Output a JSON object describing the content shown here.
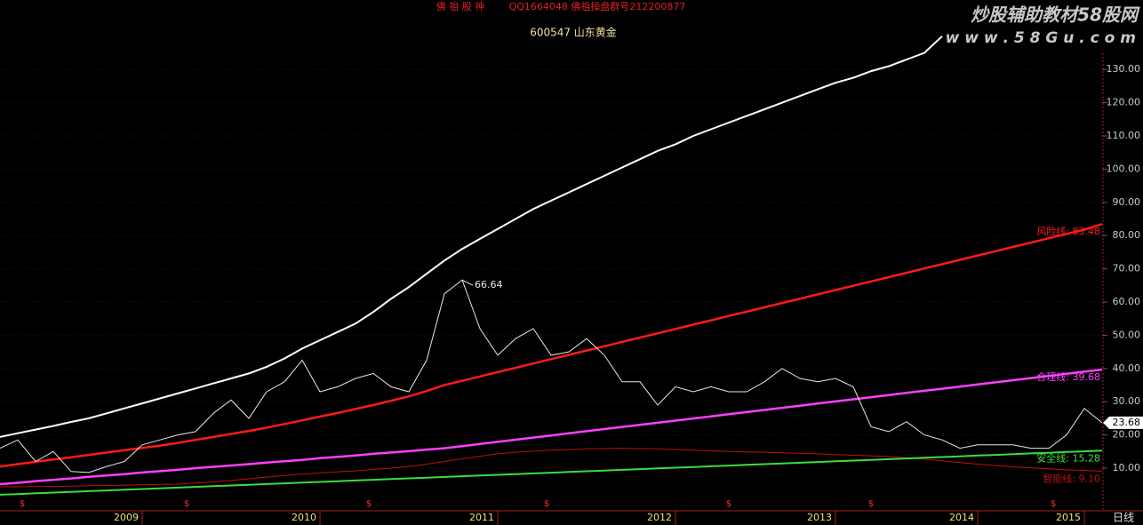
{
  "chart_data": {
    "type": "line",
    "header": "佛 祖 股 神",
    "header_contact": "QQ1664048 佛祖操盘群号212200877",
    "title": "600547 山东黄金",
    "watermark": "炒股辅助教材58股网",
    "watermark_url": "w w w . 5 8 G u . c o m",
    "period": "日线",
    "signal_symbol": "$",
    "categories": [
      null,
      null,
      null,
      null,
      null,
      null,
      null,
      null,
      "2009",
      null,
      null,
      null,
      null,
      null,
      null,
      null,
      null,
      null,
      "2010",
      null,
      null,
      null,
      null,
      null,
      null,
      null,
      null,
      null,
      "2011",
      null,
      null,
      null,
      null,
      null,
      null,
      null,
      null,
      null,
      "2012",
      null,
      null,
      null,
      null,
      null,
      null,
      null,
      null,
      "2013",
      null,
      null,
      null,
      null,
      null,
      null,
      null,
      "2014",
      null,
      null,
      null,
      null,
      null,
      "2015",
      null
    ],
    "ylim": [
      -2,
      150
    ],
    "yticks": [
      {
        "value": 10,
        "label": "10.00"
      },
      {
        "value": 20,
        "label": "20.00"
      },
      {
        "value": 30,
        "label": "30.00"
      },
      {
        "value": 40,
        "label": "40.00"
      },
      {
        "value": 50,
        "label": "50.00"
      },
      {
        "value": 60,
        "label": "60.00"
      },
      {
        "value": 70,
        "label": "70.00"
      },
      {
        "value": 80,
        "label": "80.00"
      },
      {
        "value": 90,
        "label": "90.00"
      },
      {
        "value": 100,
        "label": "100.00"
      },
      {
        "value": 110,
        "label": "110.00"
      },
      {
        "value": 120,
        "label": "120.00"
      },
      {
        "value": 130,
        "label": "130.00"
      }
    ],
    "grid": true,
    "series": [
      {
        "color": "#e8e8e8",
        "line_width": 1,
        "values": [
          16,
          18.5,
          12,
          15,
          9,
          8.7,
          10.5,
          12,
          17,
          18.5,
          20,
          21,
          26.5,
          30.5,
          25,
          33,
          36,
          42.5,
          33,
          34.5,
          37,
          38.5,
          34.5,
          33,
          42.5,
          62.5,
          66.64,
          52,
          44,
          49,
          52,
          44,
          45,
          49,
          44,
          36,
          36,
          29,
          34.5,
          33,
          34.5,
          33,
          33,
          36,
          40,
          37,
          36,
          37,
          34.5,
          22.5,
          21,
          24,
          20,
          18.5,
          16,
          17,
          17,
          17,
          16,
          16,
          20,
          28,
          23.68
        ]
      },
      {
        "color": "#ffffff",
        "line_width": 2,
        "values": [
          19.4,
          20.5,
          21.6,
          22.7,
          23.9,
          25,
          26.5,
          28,
          29.5,
          31,
          32.5,
          34,
          35.5,
          37,
          38.5,
          40.5,
          43,
          46,
          48.5,
          51,
          53.5,
          57,
          61,
          64.5,
          68.5,
          72.5,
          76,
          79,
          82,
          85,
          88,
          90.5,
          93,
          95.5,
          98,
          100.5,
          103,
          105.5,
          107.5,
          110,
          112,
          114,
          116,
          118,
          120,
          122,
          124,
          126,
          127.5,
          129.5,
          131,
          133,
          135,
          140,
          null,
          null,
          null,
          null,
          null,
          null,
          null,
          null,
          null
        ]
      },
      {
        "name": "风险线",
        "end_label": "风险线: 83.48",
        "color": "#ff1a1a",
        "line_width": 2.5,
        "values": [
          10.5,
          11.2,
          11.9,
          12.6,
          13.3,
          14,
          14.7,
          15.4,
          16.1,
          16.8,
          17.6,
          18.5,
          19.4,
          20.3,
          21.2,
          22.2,
          23.3,
          24.4,
          25.5,
          26.6,
          27.8,
          29,
          30.3,
          31.6,
          33.2,
          35,
          36.3,
          37.6,
          38.9,
          40.2,
          41.5,
          42.8,
          44.1,
          45.4,
          46.7,
          48,
          49.3,
          50.6,
          51.9,
          53.2,
          54.5,
          55.8,
          57.1,
          58.4,
          59.7,
          61,
          62.3,
          63.6,
          64.9,
          66.2,
          67.5,
          68.8,
          70.1,
          71.4,
          72.7,
          74,
          75.3,
          76.6,
          77.9,
          79.2,
          80.5,
          81.8,
          83.48
        ]
      },
      {
        "name": "合理线",
        "end_label": "合理线: 39.68",
        "color": "#ff40ff",
        "line_width": 2.5,
        "values": [
          5.2,
          5.6,
          6.1,
          6.5,
          6.9,
          7.4,
          7.8,
          8.2,
          8.7,
          9.1,
          9.5,
          10,
          10.4,
          10.8,
          11.2,
          11.7,
          12.1,
          12.5,
          13,
          13.4,
          13.8,
          14.3,
          14.7,
          15.1,
          15.6,
          16,
          16.64,
          17.28,
          17.92,
          18.56,
          19.2,
          19.84,
          20.48,
          21.12,
          21.76,
          22.4,
          23.04,
          23.68,
          24.32,
          24.96,
          25.6,
          26.24,
          26.88,
          27.52,
          28.16,
          28.8,
          29.44,
          30.08,
          30.72,
          31.36,
          32,
          32.64,
          33.28,
          33.92,
          34.56,
          35.2,
          35.84,
          36.48,
          37.12,
          37.76,
          38.4,
          39.04,
          39.68
        ]
      },
      {
        "name": "安全线",
        "end_label": "安全线: 15.28",
        "color": "#3cdc3c",
        "line_width": 2,
        "values": [
          2,
          2.21,
          2.43,
          2.64,
          2.86,
          3.07,
          3.29,
          3.5,
          3.71,
          3.93,
          4.14,
          4.36,
          4.57,
          4.79,
          5,
          5.21,
          5.43,
          5.64,
          5.86,
          6.07,
          6.29,
          6.5,
          6.71,
          6.93,
          7.14,
          7.36,
          7.57,
          7.79,
          8,
          8.21,
          8.43,
          8.64,
          8.86,
          9.07,
          9.29,
          9.5,
          9.71,
          9.93,
          10.14,
          10.36,
          10.57,
          10.79,
          11,
          11.21,
          11.43,
          11.64,
          11.86,
          12.07,
          12.29,
          12.5,
          12.71,
          12.93,
          13.14,
          13.36,
          13.57,
          13.79,
          14,
          14.21,
          14.43,
          14.64,
          14.86,
          15.07,
          15.28
        ]
      },
      {
        "name": "智能线",
        "end_label": "智能线: 9.10",
        "color": "#c01010",
        "line_width": 1,
        "values": [
          4.4,
          4.4,
          4.5,
          4.5,
          4.6,
          4.7,
          4.8,
          4.9,
          5,
          5.1,
          5.2,
          5.5,
          5.9,
          6.3,
          6.8,
          7.3,
          7.8,
          8.2,
          8.6,
          8.9,
          9.2,
          9.6,
          10,
          10.5,
          11.2,
          12,
          12.8,
          13.6,
          14.3,
          14.8,
          15.1,
          15.4,
          15.6,
          15.8,
          15.9,
          16,
          15.9,
          15.8,
          15.6,
          15.4,
          15.2,
          15,
          14.9,
          14.8,
          14.6,
          14.5,
          14.3,
          14.1,
          13.9,
          13.7,
          13.5,
          13.1,
          12.7,
          12.2,
          11.7,
          11.2,
          10.8,
          10.4,
          10.1,
          9.8,
          9.5,
          9.3,
          9.1
        ]
      }
    ]
  }
}
